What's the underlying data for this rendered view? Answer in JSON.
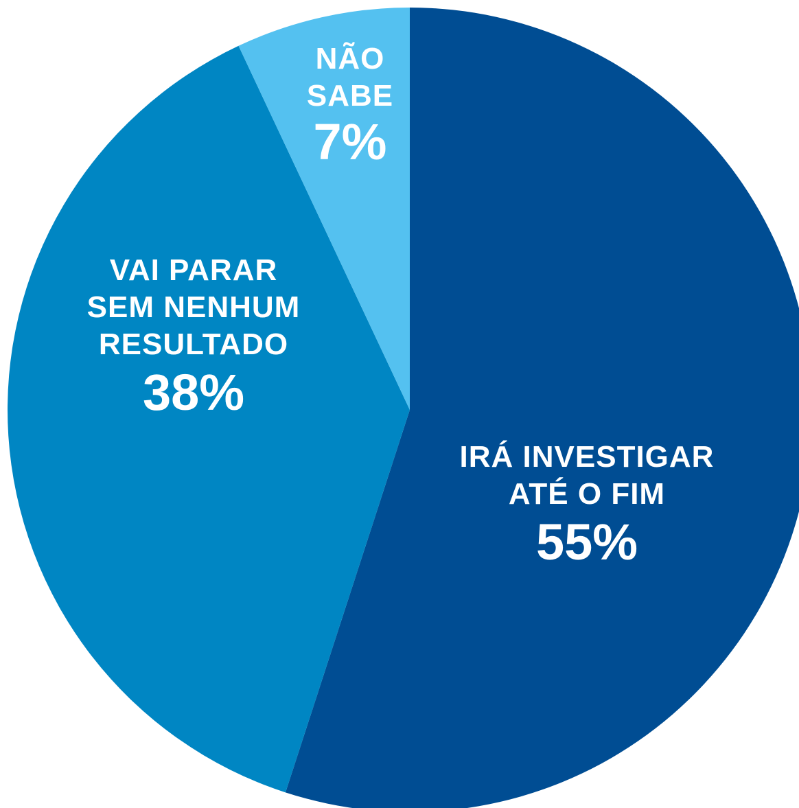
{
  "chart_data": {
    "type": "pie",
    "categories": [
      "IRÁ INVESTIGAR\nATÉ O FIM",
      "VAI PARAR\nSEM NENHUM\nRESULTADO",
      "NÃO\nSABE"
    ],
    "values": [
      55,
      38,
      7
    ],
    "value_labels": [
      "55%",
      "38%",
      "7%"
    ],
    "colors": [
      "#004d93",
      "#0086c3",
      "#54c1f0"
    ]
  }
}
